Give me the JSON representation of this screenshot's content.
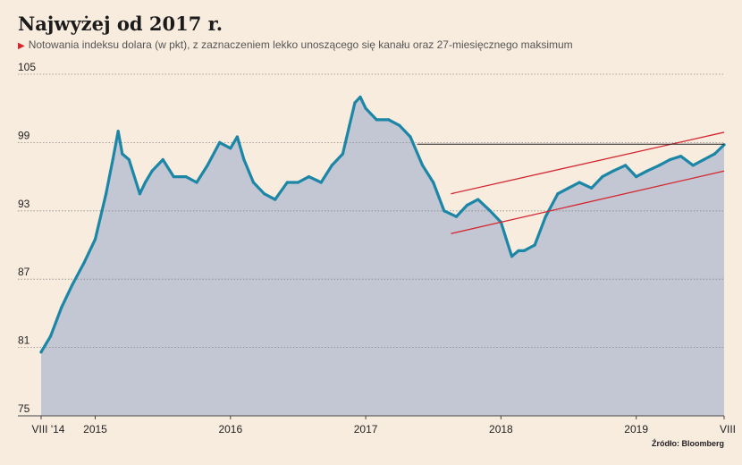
{
  "title": "Najwyżej od 2017 r.",
  "subtitle": "Notowania indeksu dolara (w pkt), z zaznaczeniem lekko unoszącego się kanału oraz 27-miesięcznego maksimum",
  "source": "Źródło: Bloomberg",
  "colors": {
    "background": "#f8ecdf",
    "area_fill": "#c3c7d3",
    "line": "#1c86a6",
    "channel": "#d4262e",
    "max_line": "#222222"
  },
  "chart_data": {
    "type": "area",
    "title": "Najwyżej od 2017 r.",
    "xlabel": "",
    "ylabel": "",
    "x_range": [
      2014.6,
      2019.65
    ],
    "ylim": [
      75,
      105
    ],
    "y_ticks": [
      75,
      81,
      87,
      93,
      99,
      105
    ],
    "y_tick_labels": [
      "75",
      "81",
      "87",
      "93",
      "99",
      "105"
    ],
    "x_ticks": [
      {
        "x": 2014.6,
        "label": "VIII '14"
      },
      {
        "x": 2015.0,
        "label": "2015"
      },
      {
        "x": 2016.0,
        "label": "2016"
      },
      {
        "x": 2017.0,
        "label": "2017"
      },
      {
        "x": 2018.0,
        "label": "2018"
      },
      {
        "x": 2019.0,
        "label": "2019"
      },
      {
        "x": 2019.65,
        "label": "VIII"
      }
    ],
    "grid": "horizontal-dotted",
    "series": [
      {
        "x": [
          2014.6,
          2014.67,
          2014.75,
          2014.83,
          2014.92,
          2015.0,
          2015.08,
          2015.13,
          2015.17,
          2015.2,
          2015.25,
          2015.33,
          2015.37,
          2015.42,
          2015.5,
          2015.58,
          2015.67,
          2015.75,
          2015.83,
          2015.92,
          2016.0,
          2016.05,
          2016.1,
          2016.17,
          2016.25,
          2016.33,
          2016.42,
          2016.5,
          2016.58,
          2016.67,
          2016.75,
          2016.83,
          2016.88,
          2016.92,
          2016.96,
          2017.0,
          2017.08,
          2017.17,
          2017.25,
          2017.33,
          2017.42,
          2017.5,
          2017.58,
          2017.67,
          2017.75,
          2017.83,
          2017.92,
          2018.0,
          2018.04,
          2018.08,
          2018.13,
          2018.17,
          2018.25,
          2018.33,
          2018.42,
          2018.5,
          2018.58,
          2018.67,
          2018.75,
          2018.83,
          2018.92,
          2019.0,
          2019.08,
          2019.17,
          2019.25,
          2019.33,
          2019.42,
          2019.5,
          2019.58,
          2019.65
        ],
        "y": [
          80.6,
          82.0,
          84.5,
          86.5,
          88.5,
          90.5,
          94.5,
          97.5,
          100.0,
          98.0,
          97.5,
          94.5,
          95.5,
          96.5,
          97.5,
          96.0,
          96.0,
          95.5,
          97.0,
          99.0,
          98.5,
          99.5,
          97.5,
          95.5,
          94.5,
          94.0,
          95.5,
          95.5,
          96.0,
          95.5,
          97.0,
          98.0,
          100.5,
          102.5,
          103.0,
          102.0,
          101.0,
          101.0,
          100.5,
          99.5,
          97.0,
          95.5,
          93.0,
          92.5,
          93.5,
          94.0,
          93.0,
          92.0,
          90.5,
          89.0,
          89.5,
          89.5,
          90.0,
          92.5,
          94.5,
          95.0,
          95.5,
          95.0,
          96.0,
          96.5,
          97.0,
          96.0,
          96.5,
          97.0,
          97.5,
          97.8,
          97.0,
          97.5,
          98.0,
          98.8
        ]
      }
    ],
    "annotations": [
      {
        "type": "channel_upper",
        "x": [
          2017.63,
          2019.65
        ],
        "y": [
          94.5,
          99.9
        ]
      },
      {
        "type": "channel_lower",
        "x": [
          2017.63,
          2019.65
        ],
        "y": [
          91.0,
          96.5
        ]
      },
      {
        "type": "max_level",
        "x": [
          2017.38,
          2019.65
        ],
        "y": [
          98.85,
          98.85
        ]
      }
    ]
  }
}
